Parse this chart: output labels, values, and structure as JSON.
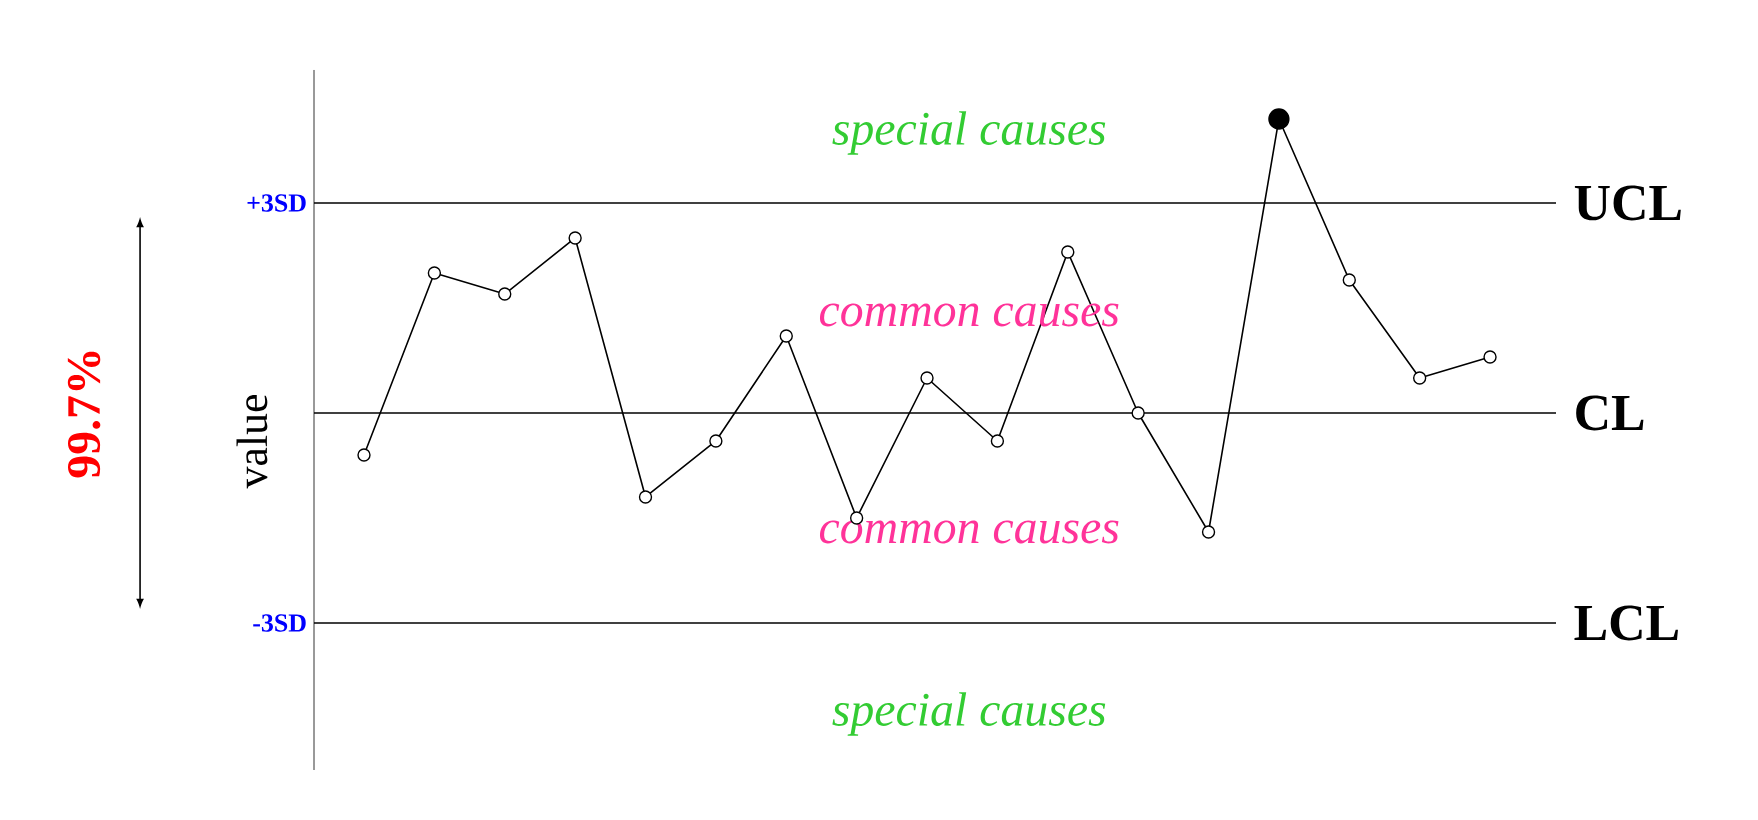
{
  "chart_data": {
    "type": "line",
    "ylabel": "value",
    "categories": [
      null,
      null,
      null,
      null,
      null,
      null,
      null,
      null,
      null,
      null,
      null,
      null,
      null,
      null,
      null,
      null,
      null
    ],
    "series": [
      {
        "color": "#000000",
        "colors": [
          "#ffffff",
          "#ffffff",
          "#ffffff",
          "#ffffff",
          "#ffffff",
          "#ffffff",
          "#ffffff",
          "#ffffff",
          "#ffffff",
          "#ffffff",
          "#ffffff",
          "#ffffff",
          "#ffffff",
          "#000000",
          "#ffffff",
          "#ffffff",
          "#ffffff"
        ],
        "values": [
          -0.6,
          2.0,
          1.7,
          2.5,
          -1.2,
          -0.4,
          1.1,
          -1.5,
          0.5,
          -0.4,
          2.3,
          0.0,
          -1.7,
          4.2,
          1.9,
          0.5,
          0.8
        ]
      }
    ],
    "marker": "circle",
    "ylim": [
      -5.1,
      4.9
    ],
    "yticks": [
      {
        "value": 3,
        "label": "+3SD"
      },
      {
        "value": -3,
        "label": "-3SD"
      }
    ],
    "ref_lines": [
      {
        "axis": "y",
        "value": 3,
        "label": "UCL",
        "color": "#000000"
      },
      {
        "axis": "y",
        "value": 0,
        "label": "CL",
        "color": "#000000"
      },
      {
        "axis": "y",
        "value": -3,
        "label": "LCL",
        "color": "#000000"
      }
    ],
    "annotations": [
      "special causes",
      "common causes",
      "common causes",
      "special causes",
      "99.7%"
    ]
  }
}
